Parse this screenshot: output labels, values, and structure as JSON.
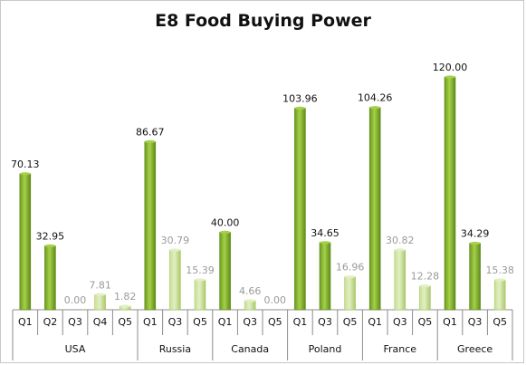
{
  "chart_data": {
    "type": "bar",
    "title": "E8 Food Buying Power",
    "xlabel": "",
    "ylabel": "",
    "ylim": [
      0,
      120
    ],
    "grid": false,
    "legend": "none",
    "colors": {
      "strong_top": "#a6d04a",
      "strong_mid": "#6b9a1f",
      "strong_bottom": "#5e8a1a",
      "faint_top": "#e2efc3",
      "faint_mid": "#c8df95",
      "faint_bottom": "#aac96a",
      "axis": "#8c8c8c"
    },
    "groups": [
      {
        "name": "USA",
        "bars": [
          {
            "label": "Q1",
            "value": 70.13,
            "display": "70.13",
            "emphasis": "strong"
          },
          {
            "label": "Q2",
            "value": 32.95,
            "display": "32.95",
            "emphasis": "strong"
          },
          {
            "label": "Q3",
            "value": 0.0,
            "display": "0.00",
            "emphasis": "faint"
          },
          {
            "label": "Q4",
            "value": 7.81,
            "display": "7.81",
            "emphasis": "faint"
          },
          {
            "label": "Q5",
            "value": 1.82,
            "display": "1.82",
            "emphasis": "faint"
          }
        ]
      },
      {
        "name": "Russia",
        "bars": [
          {
            "label": "Q1",
            "value": 86.67,
            "display": "86.67",
            "emphasis": "strong"
          },
          {
            "label": "Q3",
            "value": 30.79,
            "display": "30.79",
            "emphasis": "faint"
          },
          {
            "label": "Q5",
            "value": 15.39,
            "display": "15.39",
            "emphasis": "faint"
          }
        ]
      },
      {
        "name": "Canada",
        "bars": [
          {
            "label": "Q1",
            "value": 40.0,
            "display": "40.00",
            "emphasis": "strong"
          },
          {
            "label": "Q3",
            "value": 4.66,
            "display": "4.66",
            "emphasis": "faint"
          },
          {
            "label": "Q5",
            "value": 0.0,
            "display": "0.00",
            "emphasis": "faint"
          }
        ]
      },
      {
        "name": "Poland",
        "bars": [
          {
            "label": "Q1",
            "value": 103.96,
            "display": "103.96",
            "emphasis": "strong"
          },
          {
            "label": "Q3",
            "value": 34.65,
            "display": "34.65",
            "emphasis": "strong"
          },
          {
            "label": "Q5",
            "value": 16.96,
            "display": "16.96",
            "emphasis": "faint"
          }
        ]
      },
      {
        "name": "France",
        "bars": [
          {
            "label": "Q1",
            "value": 104.26,
            "display": "104.26",
            "emphasis": "strong"
          },
          {
            "label": "Q3",
            "value": 30.82,
            "display": "30.82",
            "emphasis": "faint"
          },
          {
            "label": "Q5",
            "value": 12.28,
            "display": "12.28",
            "emphasis": "faint"
          }
        ]
      },
      {
        "name": "Greece",
        "bars": [
          {
            "label": "Q1",
            "value": 120.0,
            "display": "120.00",
            "emphasis": "strong"
          },
          {
            "label": "Q3",
            "value": 34.29,
            "display": "34.29",
            "emphasis": "strong"
          },
          {
            "label": "Q5",
            "value": 15.38,
            "display": "15.38",
            "emphasis": "faint"
          }
        ]
      }
    ]
  }
}
